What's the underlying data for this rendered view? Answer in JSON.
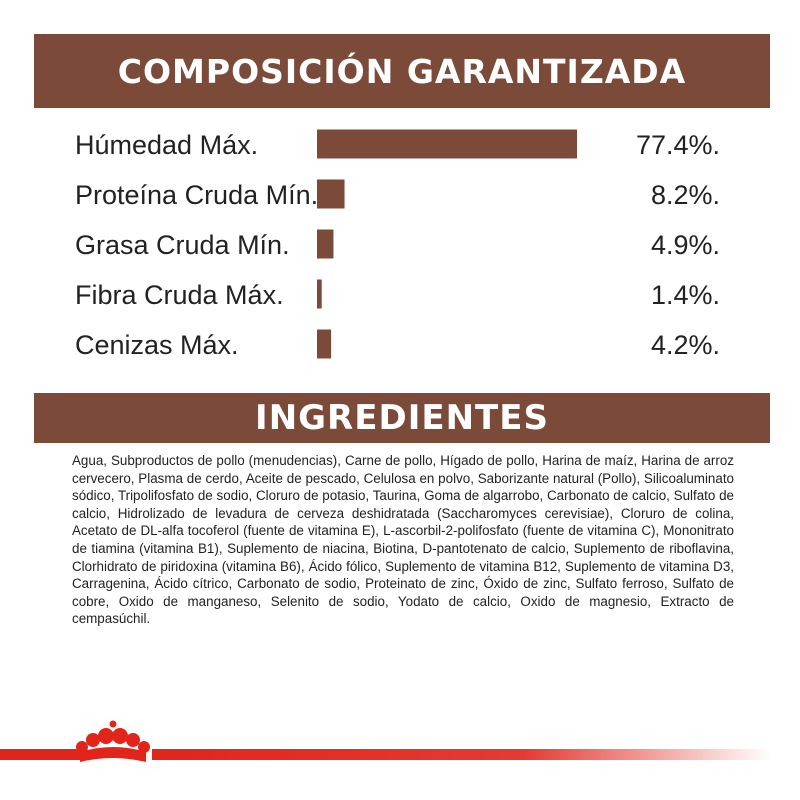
{
  "headers": {
    "composition": "COMPOSICIÓN GARANTIZADA",
    "ingredients": "INGREDIENTES"
  },
  "chart_data": {
    "type": "bar",
    "orientation": "horizontal",
    "categories": [
      "Húmedad Máx.",
      "Proteína Cruda Mín.",
      "Grasa Cruda Mín.",
      "Fibra Cruda Máx.",
      "Cenizas Máx."
    ],
    "values": [
      77.4,
      8.2,
      4.9,
      1.4,
      4.2
    ],
    "value_labels": [
      "77.4%.",
      "8.2%.",
      "4.9%.",
      "1.4%.",
      "4.2%."
    ],
    "unit": "%",
    "xlim": [
      0,
      77.4
    ],
    "bar_color": "#7c4a38"
  },
  "ingredients_text": "Agua, Subproductos de pollo (menudencias), Carne de pollo, Hígado de pollo, Harina de maíz, Harina de arroz cervecero, Plasma de cerdo, Aceite de pescado, Celulosa en polvo, Saborizante natural (Pollo), Silicoaluminato sódico, Tripolifosfato de sodio, Cloruro de potasio, Taurina, Goma de algarrobo, Carbonato de calcio, Sulfato de calcio, Hidrolizado de levadura de cerveza deshidratada (Saccharomyces cerevisiae), Cloruro de colina, Acetato de DL-alfa tocoferol (fuente de vitamina E), L-ascorbil-2-polifosfato (fuente de vitamina C), Mononitrato de tiamina (vitamina B1), Suplemento de niacina, Biotina, D-pantotenato de calcio, Suplemento de riboflavina, Clorhidrato de piridoxina (vitamina B6), Ácido fólico, Suplemento de vitamina B12, Suplemento de vitamina D3, Carragenina, Ácido cítrico, Carbonato de sodio, Proteinato de zinc, Óxido de zinc, Sulfato ferroso, Sulfato de cobre, Oxido de manganeso, Selenito de sodio, Yodato de calcio, Oxido de magnesio, Extracto de cempasúchil.",
  "colors": {
    "banner": "#7c4a38",
    "brand_red": "#e1251b"
  },
  "icons": {
    "logo": "royal-crown-logo-icon"
  }
}
